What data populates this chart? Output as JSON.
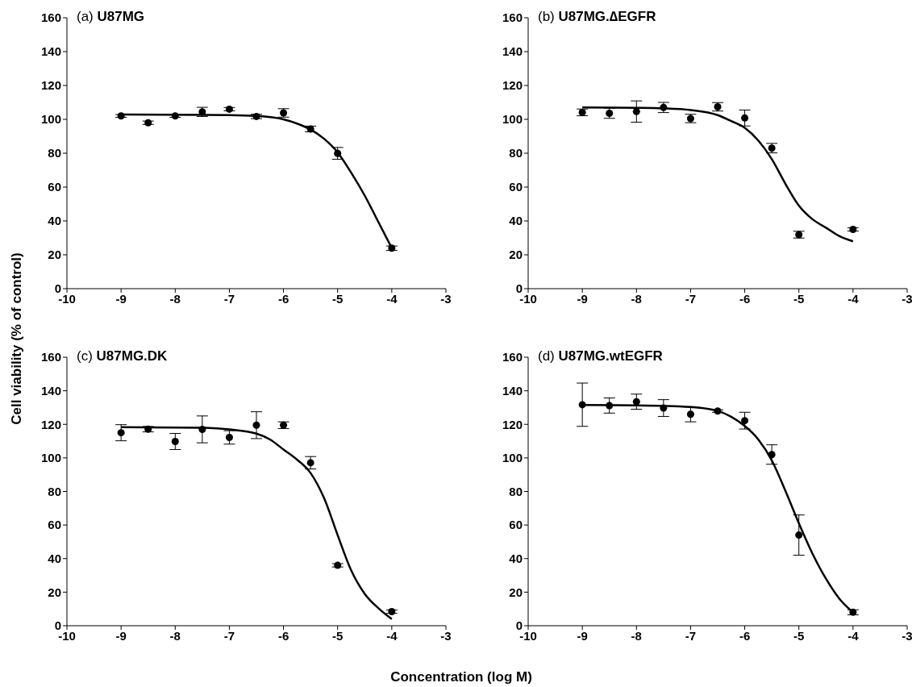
{
  "chart_data": [
    {
      "type": "scatter",
      "title": "(a) U87MG",
      "ylabel": "Cell viability (% of control)",
      "xlim": [
        -10,
        -3
      ],
      "xticks": [
        -10,
        -9,
        -8,
        -7,
        -6,
        -5,
        -4,
        -3
      ],
      "ylim": [
        0,
        160
      ],
      "yticks": [
        0,
        20,
        40,
        60,
        80,
        100,
        120,
        140,
        160
      ],
      "series": [
        {
          "marker": "circle",
          "color": "#000000",
          "x": [
            -9,
            -8.5,
            -8,
            -7.5,
            -7,
            -6.5,
            -6,
            -5.5,
            -5,
            -4
          ],
          "values": [
            102,
            98,
            102,
            104.4,
            106,
            101.7,
            103.8,
            94.3,
            79.9,
            23.9
          ],
          "errors": [
            0.8,
            1,
            0.8,
            2.7,
            1,
            1.3,
            2.5,
            1.7,
            3.5,
            1.3
          ]
        },
        {
          "type": "line",
          "marker": "none",
          "color": "#000000",
          "x": [
            -9,
            -7,
            -6.5,
            -6,
            -5.75,
            -5.5,
            -5.25,
            -5,
            -4.75,
            -4.5,
            -4.25,
            -4
          ],
          "values": [
            102.8,
            102.5,
            102,
            100,
            97.5,
            94,
            88.5,
            80.5,
            68.5,
            55,
            39.5,
            24
          ]
        }
      ]
    },
    {
      "type": "scatter",
      "title": "(b) U87MG.∆EGFR",
      "xlim": [
        -10,
        -3
      ],
      "xticks": [
        -10,
        -9,
        -8,
        -7,
        -6,
        -5,
        -4,
        -3
      ],
      "ylim": [
        0,
        160
      ],
      "yticks": [
        0,
        20,
        40,
        60,
        80,
        100,
        120,
        140,
        160
      ],
      "series": [
        {
          "marker": "circle",
          "color": "#000000",
          "x": [
            -9,
            -8.5,
            -8,
            -7.5,
            -7,
            -6.5,
            -6,
            -5.5,
            -5,
            -4
          ],
          "values": [
            104.1,
            103.6,
            104.6,
            107,
            100.5,
            107.4,
            100.8,
            83,
            31.9,
            35
          ],
          "errors": [
            2,
            3,
            6.3,
            3,
            2.5,
            2.5,
            4.7,
            2.8,
            2,
            1
          ]
        },
        {
          "type": "line",
          "marker": "none",
          "color": "#000000",
          "x": [
            -9,
            -8,
            -7.5,
            -7,
            -6.5,
            -6.25,
            -6,
            -5.75,
            -5.5,
            -5.25,
            -5,
            -4.75,
            -4.5,
            -4.25,
            -4
          ],
          "values": [
            107,
            106.8,
            106.5,
            105.5,
            102.5,
            99,
            95,
            87.5,
            76.5,
            62,
            49,
            41,
            36,
            31,
            28
          ]
        }
      ]
    },
    {
      "type": "scatter",
      "title": "(c) U87MG.DK",
      "xlabel": "Concentration (log M)",
      "xlim": [
        -10,
        -3
      ],
      "xticks": [
        -10,
        -9,
        -8,
        -7,
        -6,
        -5,
        -4,
        -3
      ],
      "ylim": [
        0,
        160
      ],
      "yticks": [
        0,
        20,
        40,
        60,
        80,
        100,
        120,
        140,
        160
      ],
      "series": [
        {
          "marker": "circle",
          "color": "#000000",
          "x": [
            -9,
            -8.5,
            -8,
            -7.5,
            -7,
            -6.5,
            -6,
            -5.5,
            -5,
            -4
          ],
          "values": [
            115,
            117.1,
            109.8,
            117,
            112.2,
            119.5,
            119.5,
            97.1,
            36,
            8.4
          ],
          "errors": [
            4.8,
            1.6,
            4.8,
            8,
            4,
            8,
            2,
            3.7,
            1,
            1
          ]
        },
        {
          "type": "line",
          "marker": "none",
          "color": "#000000",
          "x": [
            -9,
            -7.5,
            -7,
            -6.5,
            -6.25,
            -6,
            -5.75,
            -5.5,
            -5.25,
            -5,
            -4.75,
            -4.5,
            -4.25,
            -4
          ],
          "values": [
            118.3,
            118,
            117,
            114.5,
            111,
            105,
            99,
            91,
            76,
            54,
            33,
            19,
            10.5,
            4
          ]
        }
      ]
    },
    {
      "type": "scatter",
      "title": "(d) U87MG.wtEGFR",
      "xlim": [
        -10,
        -3
      ],
      "xticks": [
        -10,
        -9,
        -8,
        -7,
        -6,
        -5,
        -4,
        -3
      ],
      "ylim": [
        0,
        160
      ],
      "yticks": [
        0,
        20,
        40,
        60,
        80,
        100,
        120,
        140,
        160
      ],
      "series": [
        {
          "marker": "circle",
          "color": "#000000",
          "x": [
            -9,
            -8.5,
            -8,
            -7.5,
            -7,
            -6.5,
            -6,
            -5.5,
            -5,
            -4
          ],
          "values": [
            131.7,
            131.2,
            133.5,
            129.7,
            126,
            127.9,
            122.2,
            102,
            54,
            8
          ],
          "errors": [
            12.9,
            4.5,
            4.5,
            5,
            4.5,
            0.7,
            5,
            5.8,
            12,
            1.5
          ]
        },
        {
          "type": "line",
          "marker": "none",
          "color": "#000000",
          "x": [
            -9,
            -8,
            -7,
            -6.5,
            -6.25,
            -6,
            -5.75,
            -5.5,
            -5.25,
            -5,
            -4.75,
            -4.5,
            -4.25,
            -4
          ],
          "values": [
            131.5,
            131.3,
            130.3,
            128,
            124.5,
            119,
            111,
            98.5,
            80.5,
            61,
            43,
            28,
            16,
            8
          ]
        }
      ]
    }
  ]
}
